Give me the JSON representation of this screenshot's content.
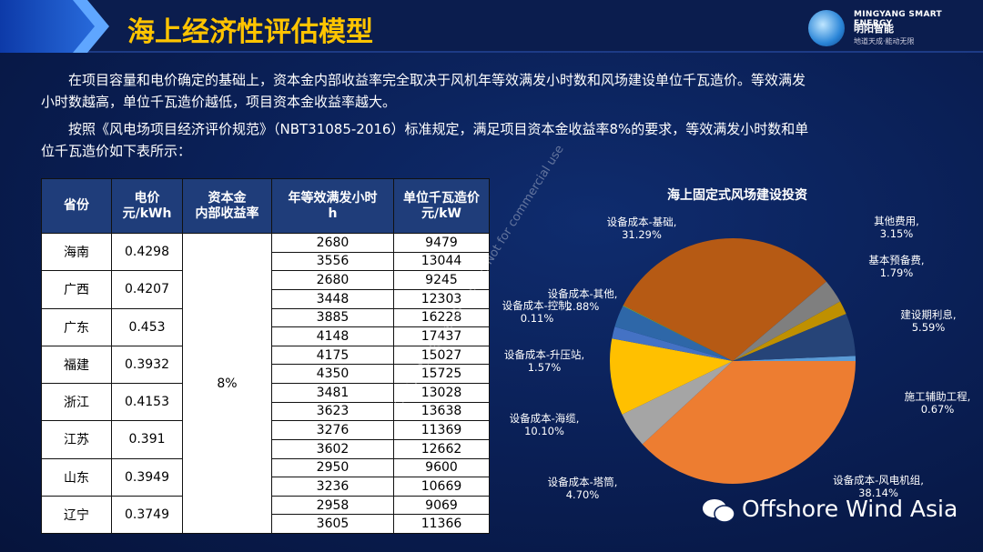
{
  "header": {
    "title": "海上经济性评估模型",
    "logo_en": "MINGYANG SMART ENERGY",
    "logo_cn": "明阳智能",
    "logo_slogan": "地道天成·能动无限"
  },
  "intro": [
    "在项目容量和电价确定的基础上，资本金内部收益率完全取决于风机年等效满发小时数和风场建设单位千瓦造价。等效满发小时数越高，单位千瓦造价越低，项目资本金收益率越大。",
    "按照《风电场项目经济评价规范》（NBT31085-2016）标准规定，满足项目资本金收益率8%的要求，等效满发小时数和单位千瓦造价如下表所示："
  ],
  "table": {
    "headers": [
      "省份",
      "电价\n元/kWh",
      "资本金\n内部收益率",
      "年等效满发小时\nh",
      "单位千瓦造价\n元/kW"
    ],
    "irr": "8%",
    "rows": [
      {
        "province": "海南",
        "price": "0.4298",
        "sub": [
          [
            "2680",
            "9479"
          ],
          [
            "3556",
            "13044"
          ]
        ]
      },
      {
        "province": "广西",
        "price": "0.4207",
        "sub": [
          [
            "2680",
            "9245"
          ],
          [
            "3448",
            "12303"
          ]
        ]
      },
      {
        "province": "广东",
        "price": "0.453",
        "sub": [
          [
            "3885",
            "16228"
          ],
          [
            "4148",
            "17437"
          ]
        ]
      },
      {
        "province": "福建",
        "price": "0.3932",
        "sub": [
          [
            "4175",
            "15027"
          ],
          [
            "4350",
            "15725"
          ]
        ]
      },
      {
        "province": "浙江",
        "price": "0.4153",
        "sub": [
          [
            "3481",
            "13028"
          ],
          [
            "3623",
            "13638"
          ]
        ]
      },
      {
        "province": "江苏",
        "price": "0.391",
        "sub": [
          [
            "3276",
            "11369"
          ],
          [
            "3602",
            "12662"
          ]
        ]
      },
      {
        "province": "山东",
        "price": "0.3949",
        "sub": [
          [
            "2950",
            "9600"
          ],
          [
            "3236",
            "10669"
          ]
        ]
      },
      {
        "province": "辽宁",
        "price": "0.3749",
        "sub": [
          [
            "2958",
            "9069"
          ],
          [
            "3605",
            "11366"
          ]
        ]
      }
    ]
  },
  "chart_data": {
    "type": "pie",
    "title": "海上固定式风场建设投资",
    "slices": [
      {
        "label": "施工辅助工程,",
        "value": 0.67,
        "text": "0.67%",
        "color": "#5b9bd5"
      },
      {
        "label": "设备成本-风电机组,",
        "value": 38.14,
        "text": "38.14%",
        "color": "#ed7d31"
      },
      {
        "label": "设备成本-塔筒,",
        "value": 4.7,
        "text": "4.70%",
        "color": "#a5a5a5"
      },
      {
        "label": "设备成本-海缆,",
        "value": 10.1,
        "text": "10.10%",
        "color": "#ffc000"
      },
      {
        "label": "设备成本-升压站,",
        "value": 1.57,
        "text": "1.57%",
        "color": "#4472c4"
      },
      {
        "label": "设备成本-其他,",
        "value": 2.88,
        "text": "2.88%",
        "color": "#2e67a8"
      },
      {
        "label": "设备成本-控制,",
        "value": 0.11,
        "text": "0.11%",
        "color": "#70ad47"
      },
      {
        "label": "设备成本-基础,",
        "value": 31.29,
        "text": "31.29%",
        "color": "#b65a14"
      },
      {
        "label": "其他费用,",
        "value": 3.15,
        "text": "3.15%",
        "color": "#7f7f7f"
      },
      {
        "label": "基本预备费,",
        "value": 1.79,
        "text": "1.79%",
        "color": "#bf9000"
      },
      {
        "label": "建设期利息,",
        "value": 5.59,
        "text": "5.59%",
        "color": "#264478"
      }
    ]
  },
  "watermark": {
    "diag": "OWA2021: For reading only, Not for commercial use",
    "brand": "Offshore Wind Asia"
  }
}
